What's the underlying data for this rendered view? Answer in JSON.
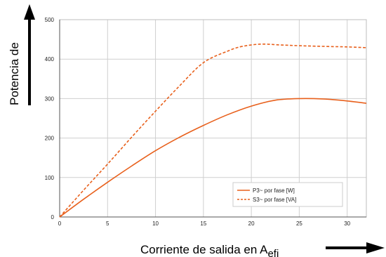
{
  "chart_data": {
    "type": "line",
    "ylabel": "Potencia de",
    "xlabel": "Corriente de salida en A",
    "xlabel_subscript": "efi",
    "xlim": [
      0,
      32
    ],
    "ylim": [
      0,
      500
    ],
    "xticks": [
      0,
      5,
      10,
      15,
      20,
      25,
      30
    ],
    "yticks": [
      0,
      100,
      200,
      300,
      400,
      500
    ],
    "grid": true,
    "legend_position": "lower-right",
    "series": [
      {
        "name": "P3~ por fase [W]",
        "style": "solid",
        "color": "#e8601c",
        "x": [
          0,
          2.5,
          5,
          7.5,
          10,
          12.5,
          15,
          17.5,
          20,
          22.5,
          25,
          27.5,
          30,
          32
        ],
        "y": [
          0,
          45,
          88,
          129,
          168,
          202,
          232,
          259,
          281,
          296,
          300,
          299,
          294,
          288
        ]
      },
      {
        "name": "S3~ por fase [VA]",
        "style": "dashed",
        "color": "#e8601c",
        "x": [
          0,
          2.5,
          5,
          7.5,
          10,
          12.5,
          15,
          17.5,
          19,
          21,
          23,
          25,
          28,
          30,
          32
        ],
        "y": [
          0,
          68,
          134,
          202,
          268,
          332,
          391,
          420,
          432,
          438,
          436,
          434,
          432,
          431,
          429
        ]
      }
    ]
  }
}
